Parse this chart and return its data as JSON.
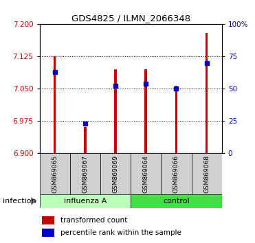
{
  "title": "GDS4825 / ILMN_2066348",
  "samples": [
    "GSM869065",
    "GSM869067",
    "GSM869069",
    "GSM869064",
    "GSM869066",
    "GSM869068"
  ],
  "group_labels": [
    "influenza A",
    "control"
  ],
  "red_values": [
    7.125,
    6.96,
    7.095,
    7.095,
    7.057,
    7.18
  ],
  "blue_percentiles": [
    63,
    23,
    52,
    54,
    50,
    70
  ],
  "ymin": 6.9,
  "ymax": 7.2,
  "yticks_left": [
    6.9,
    6.975,
    7.05,
    7.125,
    7.2
  ],
  "yticks_right_vals": [
    0,
    25,
    50,
    75,
    100
  ],
  "bar_color": "#cc0000",
  "dot_color": "#0000cc",
  "influenza_bg": "#bbffbb",
  "control_bg": "#44dd44",
  "xlabel_group": "infection",
  "legend_red": "transformed count",
  "legend_blue": "percentile rank within the sample",
  "bar_width": 0.08,
  "bar_bottom": 6.9
}
